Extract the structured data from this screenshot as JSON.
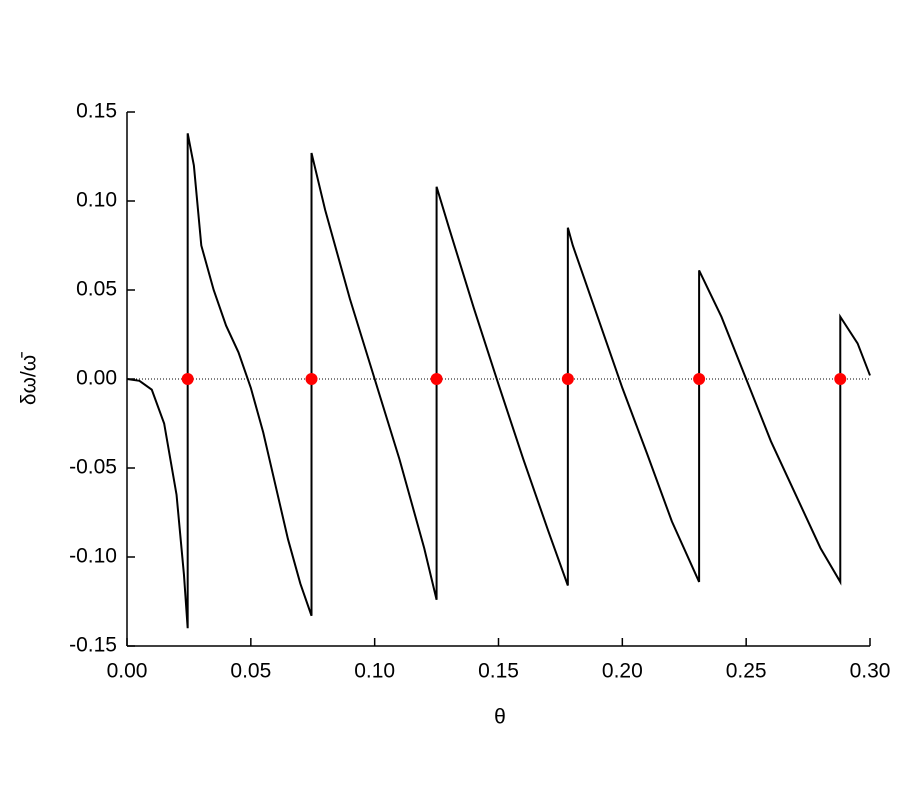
{
  "chart_data": {
    "type": "line",
    "x_label": "θ",
    "y_label": "δω/ω̄",
    "xlim": [
      0,
      0.3
    ],
    "ylim": [
      -0.15,
      0.15
    ],
    "xticks": [
      {
        "value": 0,
        "label": "0.00"
      },
      {
        "value": 0.05,
        "label": "0.05"
      },
      {
        "value": 0.1,
        "label": "0.10"
      },
      {
        "value": 0.15,
        "label": "0.15"
      },
      {
        "value": 0.2,
        "label": "0.20"
      },
      {
        "value": 0.25,
        "label": "0.25"
      },
      {
        "value": 0.3,
        "label": "0.30"
      }
    ],
    "yticks": [
      {
        "value": -0.15,
        "label": "-0.15"
      },
      {
        "value": -0.1,
        "label": "-0.10"
      },
      {
        "value": -0.05,
        "label": "-0.05"
      },
      {
        "value": 0,
        "label": "0.00"
      },
      {
        "value": 0.05,
        "label": "0.05"
      },
      {
        "value": 0.1,
        "label": "0.10"
      },
      {
        "value": 0.15,
        "label": "0.15"
      }
    ],
    "reference_line": 0,
    "series": [
      {
        "type": "line",
        "color": "#000000",
        "x": [
          0,
          0.005,
          0.01,
          0.015,
          0.02,
          0.023,
          0.0245,
          0.0245,
          0.027,
          0.03,
          0.035,
          0.04,
          0.045,
          0.05,
          0.055,
          0.06,
          0.065,
          0.07,
          0.0745,
          0.0745,
          0.08,
          0.09,
          0.1,
          0.11,
          0.12,
          0.125,
          0.125,
          0.13,
          0.14,
          0.15,
          0.16,
          0.17,
          0.178,
          0.178,
          0.18,
          0.19,
          0.2,
          0.21,
          0.22,
          0.231,
          0.231,
          0.24,
          0.25,
          0.26,
          0.27,
          0.28,
          0.288,
          0.288,
          0.295,
          0.3
        ],
        "values": [
          0,
          -0.001,
          -0.006,
          -0.025,
          -0.065,
          -0.11,
          -0.14,
          0.138,
          0.12,
          0.075,
          0.05,
          0.03,
          0.015,
          -0.005,
          -0.03,
          -0.06,
          -0.09,
          -0.115,
          -0.133,
          0.127,
          0.095,
          0.045,
          0,
          -0.045,
          -0.095,
          -0.124,
          0.108,
          0.085,
          0.04,
          -0.003,
          -0.045,
          -0.085,
          -0.116,
          0.085,
          0.075,
          0.035,
          -0.005,
          -0.042,
          -0.08,
          -0.114,
          0.061,
          0.035,
          0,
          -0.035,
          -0.065,
          -0.095,
          -0.114,
          0.035,
          0.02,
          0.002
        ]
      },
      {
        "type": "scatter",
        "color": "#ff0000",
        "x": [
          0.0245,
          0.0745,
          0.125,
          0.178,
          0.231,
          0.288
        ],
        "values": [
          0,
          0,
          0,
          0,
          0,
          0
        ]
      }
    ]
  }
}
